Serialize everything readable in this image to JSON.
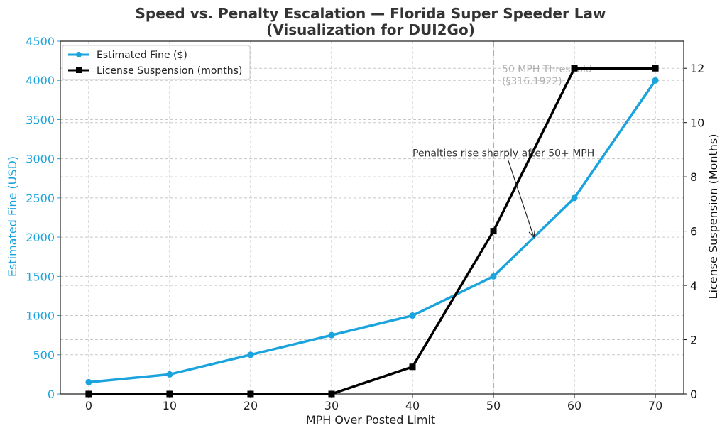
{
  "chart_data": {
    "type": "line",
    "title_line1": "Speed vs. Penalty Escalation — Florida Super Speeder Law",
    "title_line2": "(Visualization for DUI2Go)",
    "xlabel": "MPH Over Posted Limit",
    "ylabel_left": "Estimated Fine (USD)",
    "ylabel_right": "License Suspension (Months)",
    "x": [
      0,
      10,
      20,
      30,
      40,
      50,
      60,
      70
    ],
    "xlim": [
      -3.5,
      73.5
    ],
    "xticks": [
      "0",
      "10",
      "20",
      "30",
      "40",
      "50",
      "60",
      "70"
    ],
    "ylim_left": [
      0,
      4500
    ],
    "yticks_left": [
      "0",
      "500",
      "1000",
      "1500",
      "2000",
      "2500",
      "3000",
      "3500",
      "4000",
      "4500"
    ],
    "ylim_right": [
      0,
      13
    ],
    "yticks_right": [
      "0",
      "2",
      "4",
      "6",
      "8",
      "10",
      "12"
    ],
    "series": [
      {
        "name": "Estimated Fine ($)",
        "axis": "left",
        "color": "#1aa3dd",
        "marker": "circle",
        "values": [
          150,
          250,
          500,
          750,
          1000,
          1500,
          2500,
          4000
        ]
      },
      {
        "name": "License Suspension (months)",
        "axis": "right",
        "color": "#000000",
        "marker": "square",
        "values": [
          0,
          0,
          0,
          0,
          1,
          6,
          12,
          12
        ]
      }
    ],
    "threshold": {
      "x": 50,
      "label_line1": "50 MPH Threshold",
      "label_line2": "(§316.1922)",
      "color": "#b0b0b0"
    },
    "annotation": {
      "text": "Penalties rise sharply after 50+ MPH",
      "text_x": 40,
      "text_y_left": 3030,
      "arrow_to_x": 55,
      "arrow_to_y_left": 2000
    },
    "legend_position": "top-left",
    "grid": true
  }
}
